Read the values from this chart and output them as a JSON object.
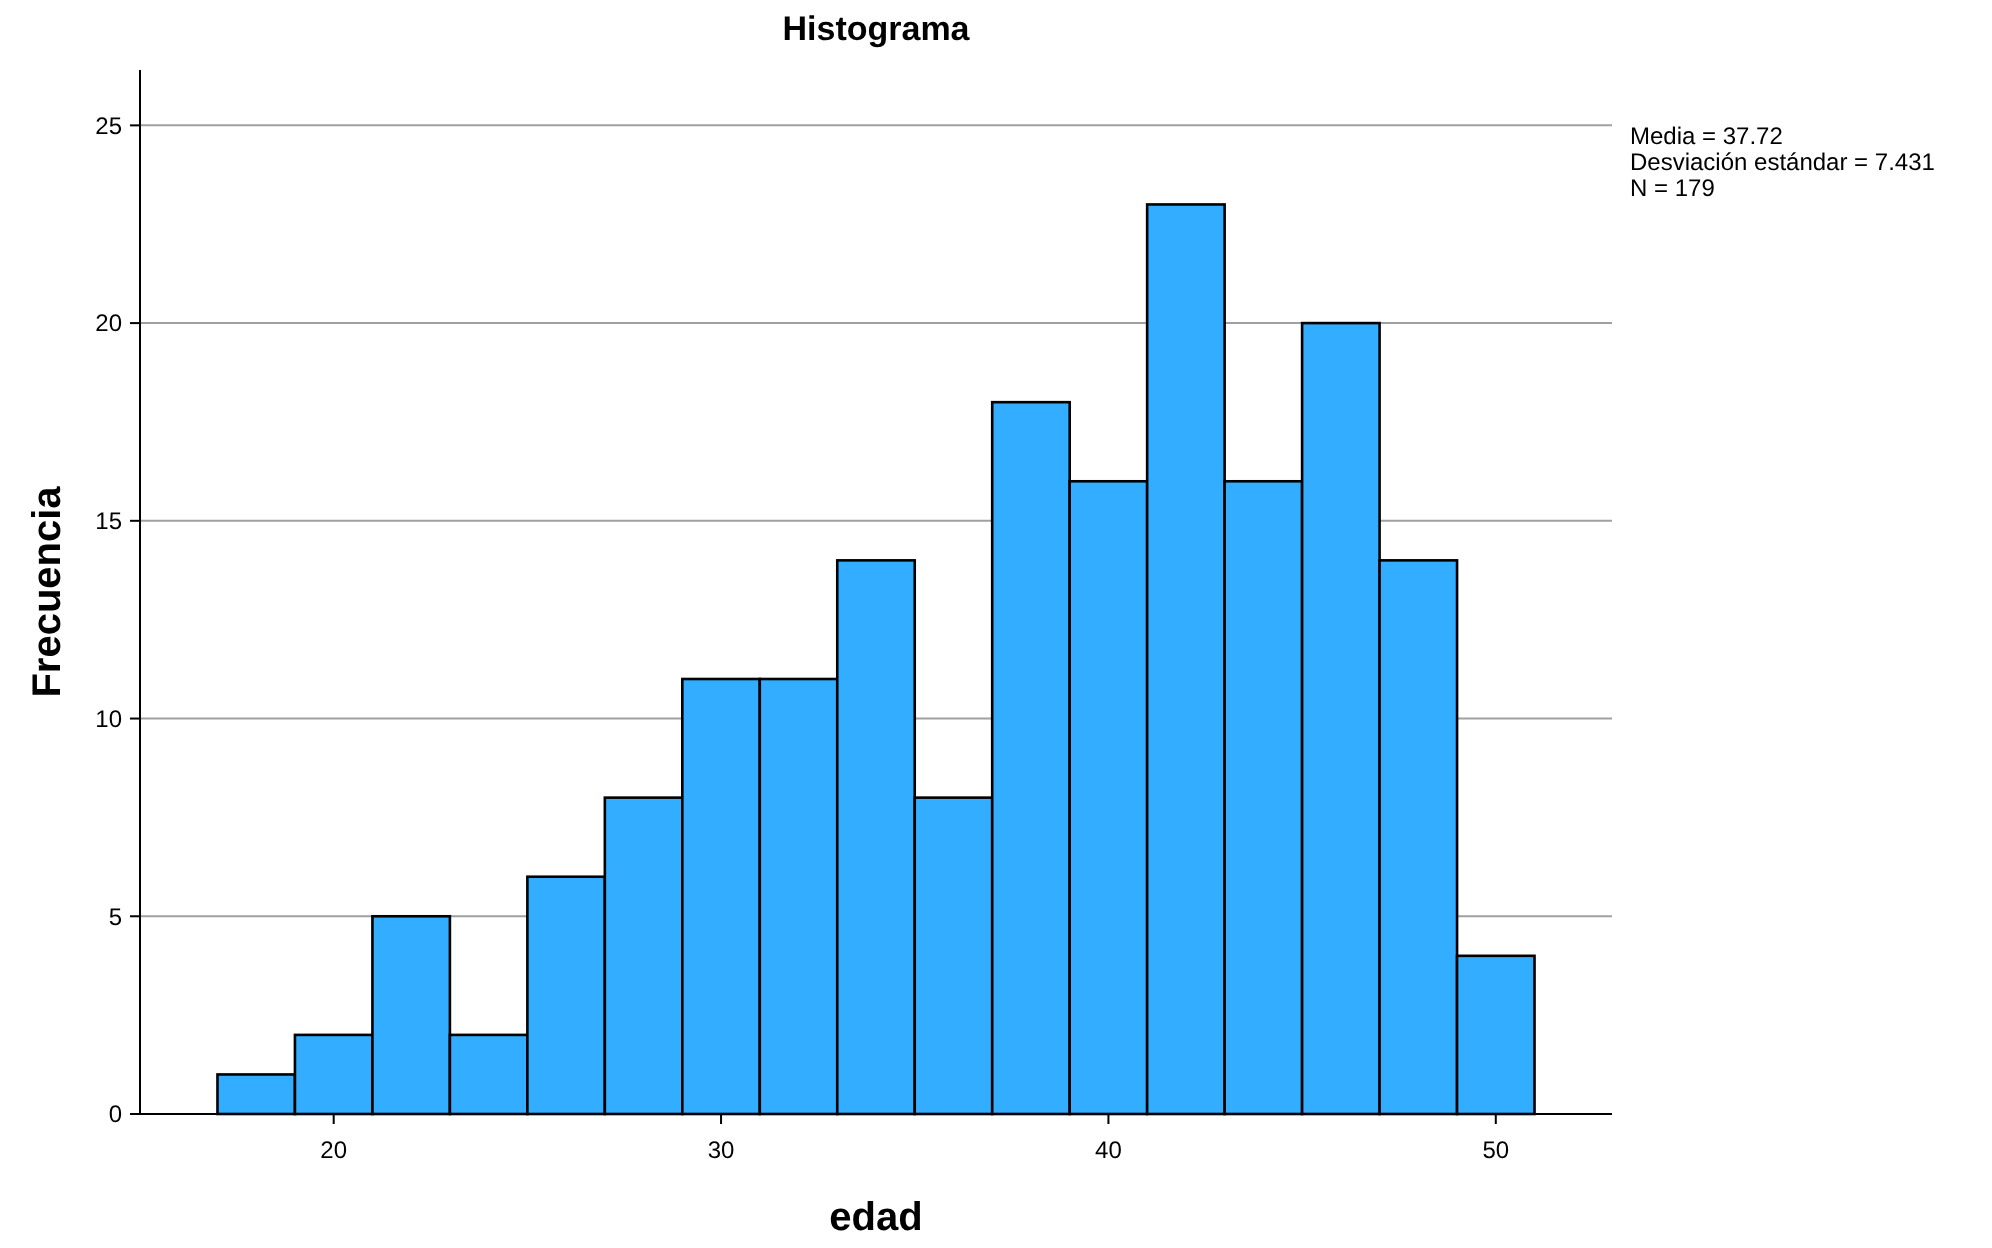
{
  "chart_data": {
    "type": "histogram",
    "title": "Histograma",
    "xlabel": "edad",
    "ylabel": "Frecuencia",
    "bins": [
      17,
      19,
      21,
      23,
      25,
      27,
      29,
      31,
      33,
      35,
      37,
      39,
      41,
      43,
      45,
      47,
      49,
      51
    ],
    "values": [
      1,
      2,
      5,
      2,
      6,
      8,
      11,
      11,
      14,
      8,
      18,
      16,
      23,
      16,
      20,
      14,
      4
    ],
    "color": "#33adff",
    "xlim": [
      15,
      53
    ],
    "xticks": [
      20,
      30,
      40,
      50
    ],
    "ylim": [
      0,
      26.4
    ],
    "yticks": [
      0,
      5,
      10,
      15,
      20,
      25
    ],
    "grid": "y",
    "annotations": [
      "Media = 37.72",
      "Desviación estándar = 7.431",
      "N = 179"
    ]
  }
}
